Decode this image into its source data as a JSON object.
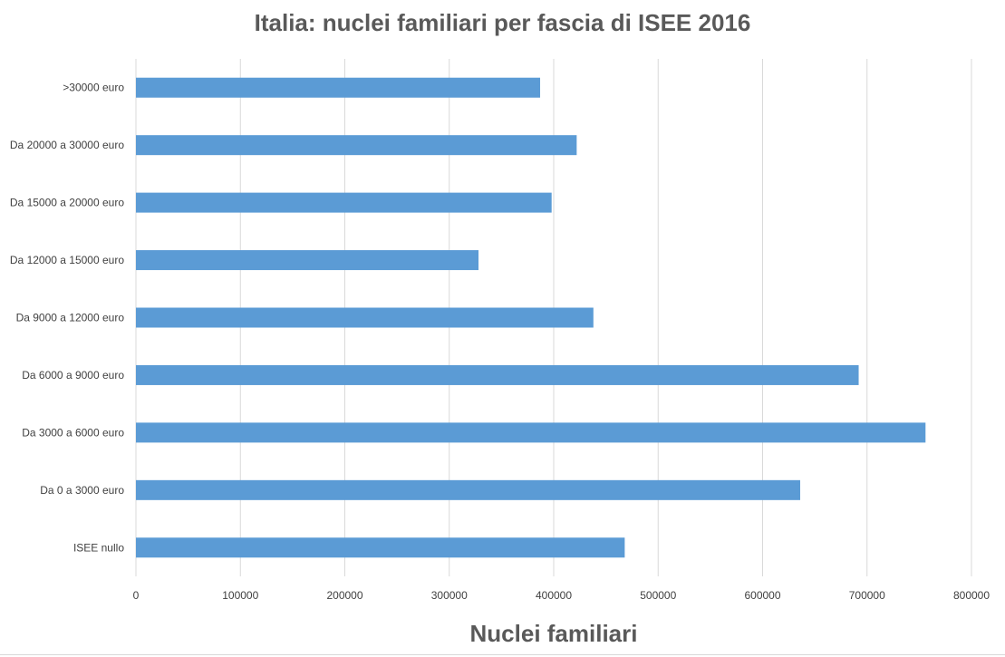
{
  "chart_data": {
    "type": "bar",
    "orientation": "horizontal",
    "title": "Italia: nuclei familiari per fascia di ISEE 2016",
    "xlabel": "Nuclei familiari",
    "ylabel": "",
    "categories": [
      "ISEE nullo",
      "Da 0 a 3000  euro",
      "Da 3000 a 6000 euro",
      "Da 6000 a 9000 euro",
      "Da 9000 a 12000 euro",
      "Da 12000 a 15000 euro",
      "Da 15000 a 20000 euro",
      "Da 20000 a 30000 euro",
      ">30000 euro"
    ],
    "values": [
      468000,
      636000,
      756000,
      692000,
      438000,
      328000,
      398000,
      422000,
      387000
    ],
    "xlim": [
      0,
      800000
    ],
    "xticks": [
      "0",
      "100000",
      "200000",
      "300000",
      "400000",
      "500000",
      "600000",
      "700000",
      "800000"
    ],
    "grid": true,
    "legend": "none",
    "bar_color": "#5B9BD5",
    "grid_color": "#D9D9D9"
  }
}
